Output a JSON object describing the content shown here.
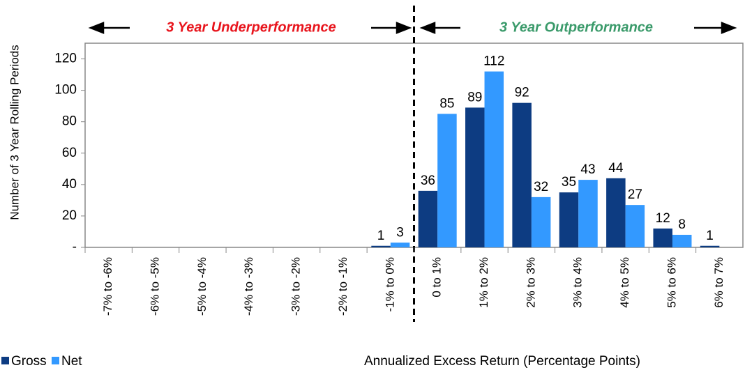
{
  "chart_data": {
    "type": "bar",
    "annotations": [
      "3 Year Underperformance",
      "3 Year Outperformance"
    ],
    "annotation_colors": [
      "#e8141c",
      "#3a9a6a"
    ],
    "xlabel": "Annualized Excess Return (Percentage Points)",
    "ylabel": "Number of 3 Year Rolling Periods",
    "categories": [
      "-7% to -6%",
      "-6% to -5%",
      "-5% to -4%",
      "-4% to -3%",
      "-3% to -2%",
      "-2% to -1%",
      "-1% to 0%",
      "0 to 1%",
      "1% to 2%",
      "2% to 3%",
      "3% to 4%",
      "4% to 5%",
      "5% to 6%",
      "6% to 7%"
    ],
    "series": [
      {
        "name": "Gross",
        "color": "#0d3c82",
        "values": [
          0,
          0,
          0,
          0,
          0,
          0,
          1,
          36,
          89,
          92,
          35,
          44,
          12,
          1
        ],
        "value_labels": [
          null,
          null,
          null,
          null,
          null,
          null,
          "1",
          "36",
          "89",
          "92",
          "35",
          "44",
          "12",
          "1"
        ]
      },
      {
        "name": "Net",
        "color": "#3399ff",
        "values": [
          0,
          0,
          0,
          0,
          0,
          0,
          3,
          85,
          112,
          32,
          43,
          27,
          8,
          0
        ],
        "value_labels": [
          null,
          null,
          null,
          null,
          null,
          null,
          "3",
          "85",
          "112",
          "32",
          "43",
          "27",
          "8",
          null
        ]
      }
    ],
    "ylim": [
      0,
      130
    ],
    "yticks": [
      {
        "value": 0,
        "label": "-"
      },
      20,
      40,
      60,
      80,
      100,
      120
    ],
    "grid": false
  }
}
